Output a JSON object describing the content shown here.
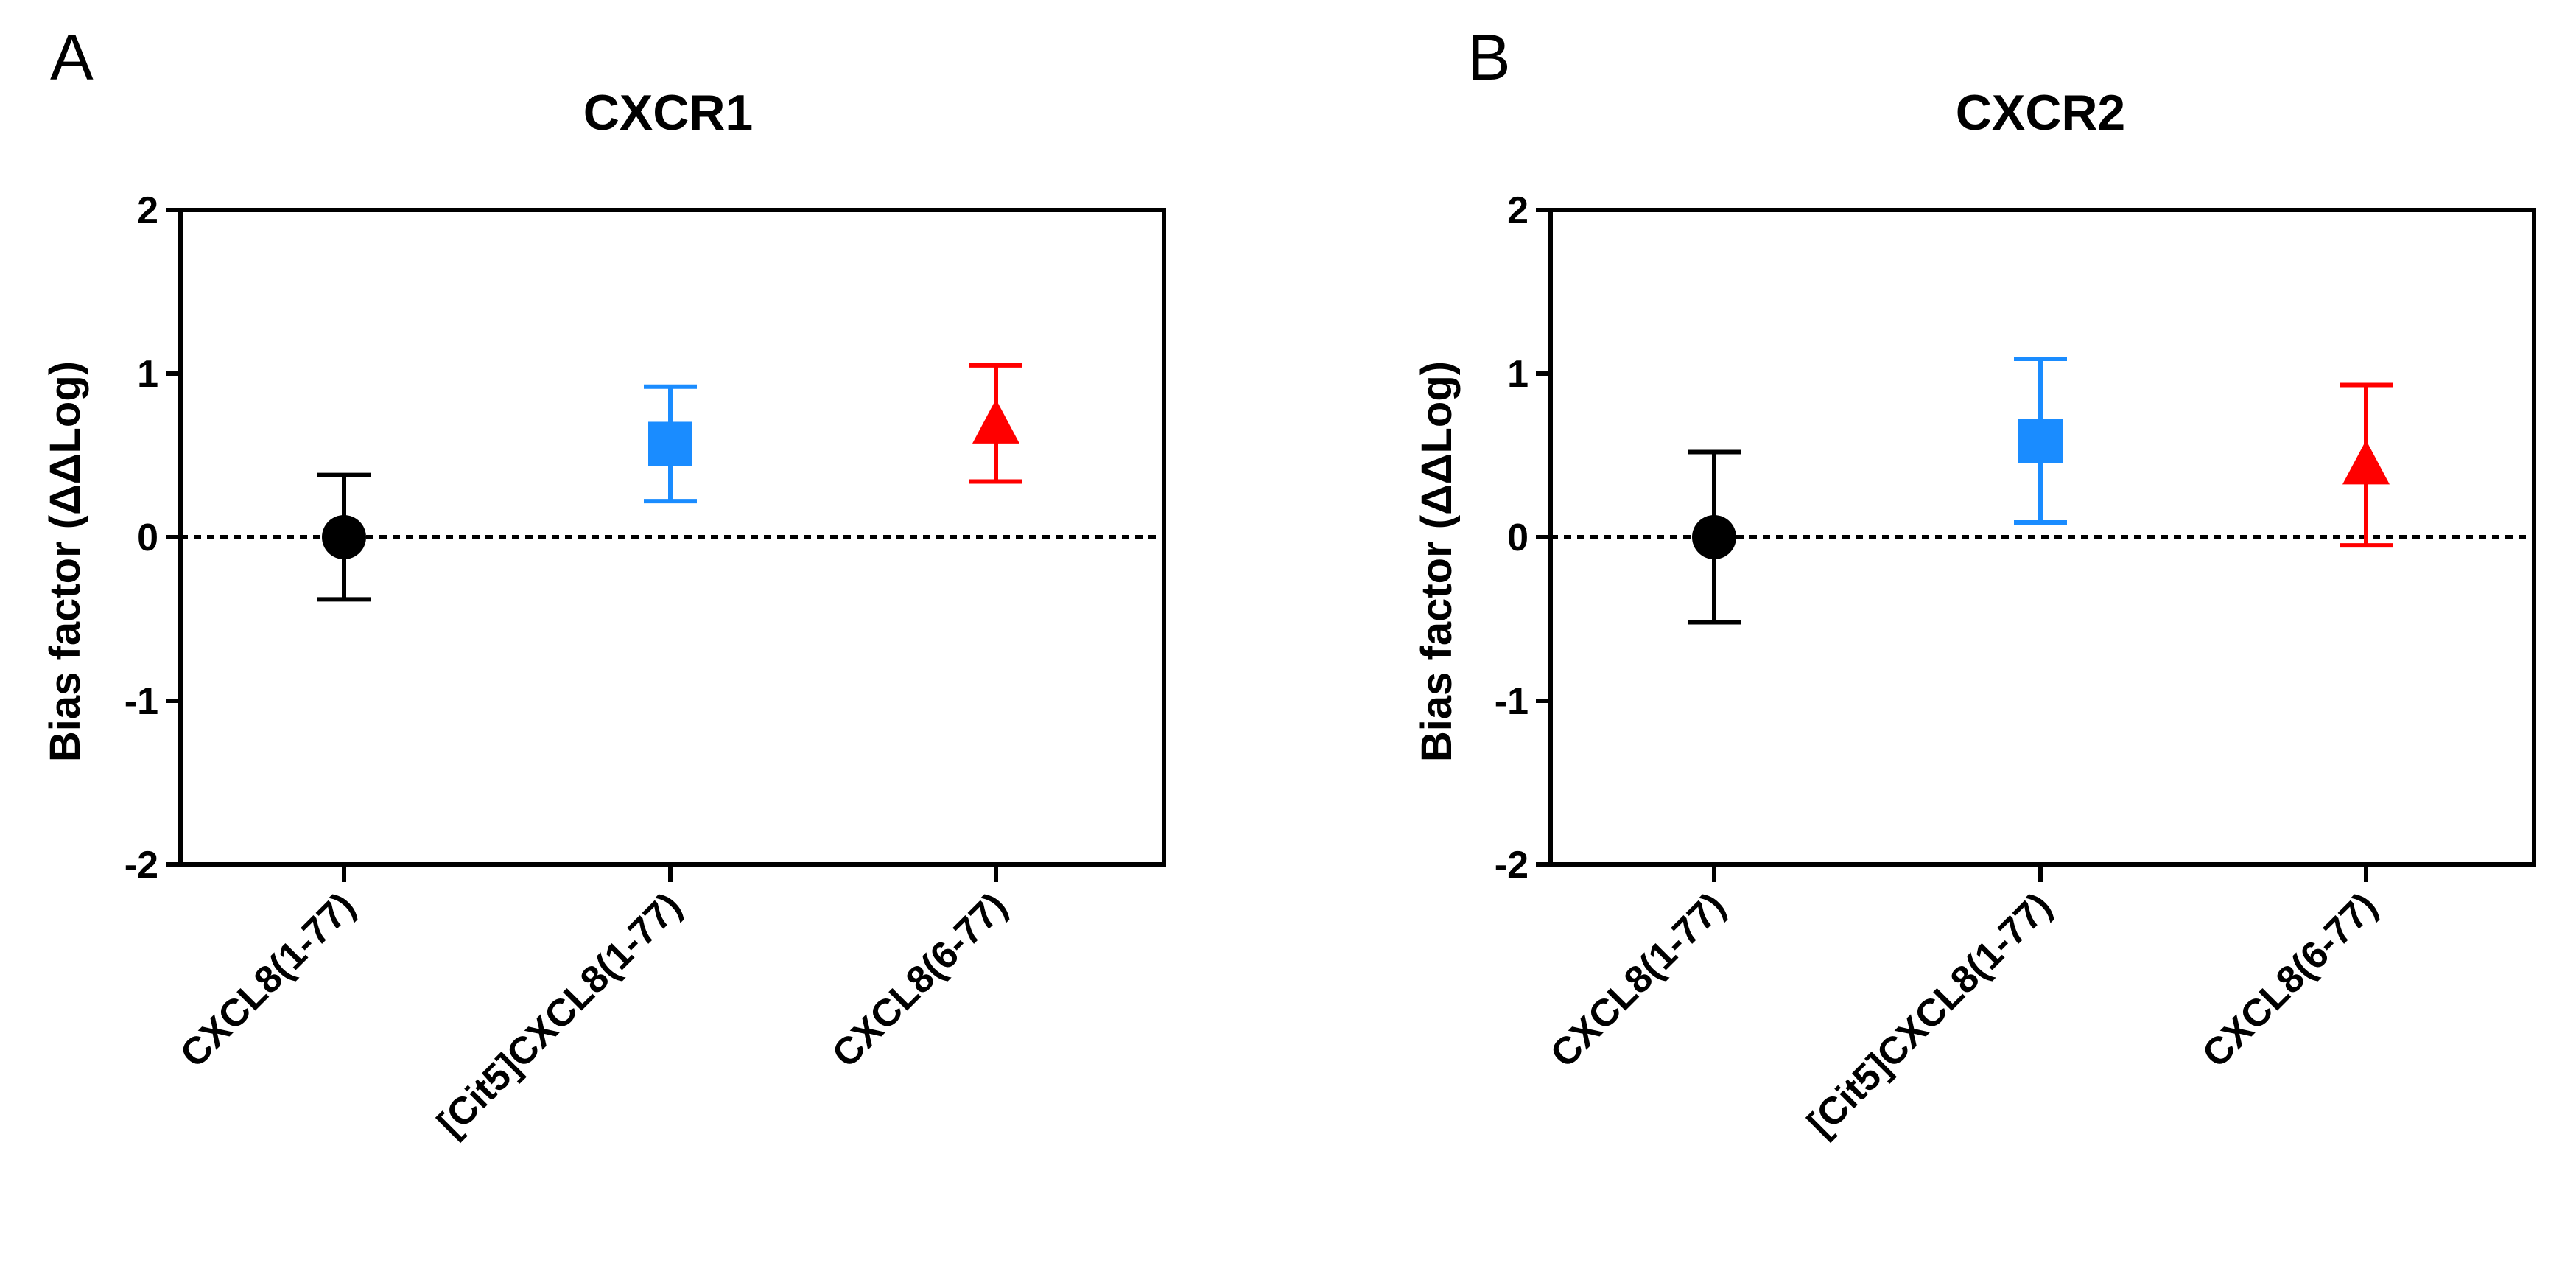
{
  "chart_data": [
    {
      "type": "scatter",
      "panel": "A",
      "title": "CXCR1",
      "xlabel": "",
      "ylabel": "Bias factor (ΔΔLog)",
      "ylim": [
        -2,
        2
      ],
      "yticks": [
        "2",
        "1",
        "0",
        "-1",
        "-2"
      ],
      "reference_line": 0,
      "categories": [
        "CXCL8(1-77)",
        "[Cit5]CXCL8(1-77)",
        "CXCL8(6-77)"
      ],
      "series": [
        {
          "name": "CXCL8(1-77)",
          "marker": "circle",
          "color": "#000000",
          "value": 0.0,
          "error_low": -0.38,
          "error_high": 0.38
        },
        {
          "name": "[Cit5]CXCL8(1-77)",
          "marker": "square",
          "color": "#1a8cff",
          "value": 0.57,
          "error_low": 0.22,
          "error_high": 0.92
        },
        {
          "name": "CXCL8(6-77)",
          "marker": "triangle",
          "color": "#ff0000",
          "value": 0.69,
          "error_low": 0.34,
          "error_high": 1.05
        }
      ]
    },
    {
      "type": "scatter",
      "panel": "B",
      "title": "CXCR2",
      "xlabel": "",
      "ylabel": "Bias factor (ΔΔLog)",
      "ylim": [
        -2,
        2
      ],
      "yticks": [
        "2",
        "1",
        "0",
        "-1",
        "-2"
      ],
      "reference_line": 0,
      "categories": [
        "CXCL8(1-77)",
        "[Cit5]CXCL8(1-77)",
        "CXCL8(6-77)"
      ],
      "series": [
        {
          "name": "CXCL8(1-77)",
          "marker": "circle",
          "color": "#000000",
          "value": 0.0,
          "error_low": -0.52,
          "error_high": 0.52
        },
        {
          "name": "[Cit5]CXCL8(1-77)",
          "marker": "square",
          "color": "#1a8cff",
          "value": 0.59,
          "error_low": 0.09,
          "error_high": 1.09
        },
        {
          "name": "CXCL8(6-77)",
          "marker": "triangle",
          "color": "#ff0000",
          "value": 0.44,
          "error_low": -0.05,
          "error_high": 0.93
        }
      ]
    }
  ]
}
